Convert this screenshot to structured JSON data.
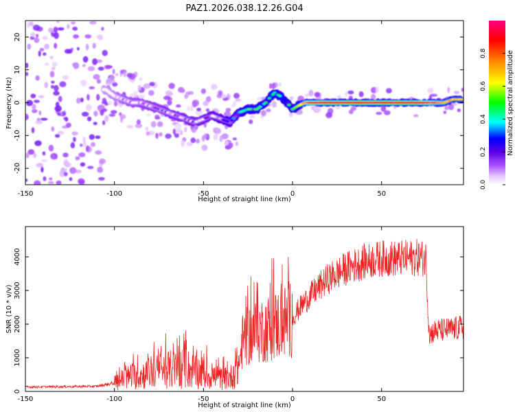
{
  "figure_title": "PAZ1.2026.038.12.26.G04",
  "chart_data": [
    {
      "type": "heatmap",
      "title": "PAZ1.2026.038.12.26.G04",
      "xlabel": "Height of straight line (km)",
      "ylabel": "Frequency (Hz)",
      "xlim": [
        -150,
        96
      ],
      "ylim": [
        -25,
        25
      ],
      "x_ticks": [
        -150,
        -100,
        -50,
        0,
        50
      ],
      "y_ticks": [
        -20,
        -10,
        0,
        10,
        20
      ],
      "colorbar": {
        "label": "Normalized spectral amplitude",
        "range": [
          0,
          1
        ],
        "ticks": [
          0.0,
          0.2,
          0.4,
          0.6,
          0.8
        ]
      },
      "ridge": {
        "description": "Frequency of the dominant spectral ridge vs height",
        "points": [
          [
            -105,
            4
          ],
          [
            -100,
            2
          ],
          [
            -95,
            1
          ],
          [
            -90,
            0
          ],
          [
            -85,
            0
          ],
          [
            -80,
            -1
          ],
          [
            -75,
            -2
          ],
          [
            -70,
            -3
          ],
          [
            -65,
            -4
          ],
          [
            -60,
            -5
          ],
          [
            -55,
            -6
          ],
          [
            -50,
            -5
          ],
          [
            -45,
            -4
          ],
          [
            -40,
            -5
          ],
          [
            -35,
            -6
          ],
          [
            -30,
            -3
          ],
          [
            -25,
            -2
          ],
          [
            -20,
            -2
          ],
          [
            -15,
            0
          ],
          [
            -12,
            2
          ],
          [
            -10,
            3
          ],
          [
            -7,
            2
          ],
          [
            -3,
            0
          ],
          [
            0,
            -2
          ],
          [
            3,
            -1
          ],
          [
            7,
            0
          ],
          [
            10,
            0
          ],
          [
            30,
            0
          ],
          [
            50,
            0
          ],
          [
            70,
            0
          ],
          [
            85,
            0
          ],
          [
            90,
            1
          ],
          [
            95,
            1
          ]
        ],
        "peak_amplitude": [
          [
            -105,
            0.12
          ],
          [
            -90,
            0.18
          ],
          [
            -70,
            0.22
          ],
          [
            -50,
            0.25
          ],
          [
            -35,
            0.32
          ],
          [
            -25,
            0.55
          ],
          [
            -15,
            0.5
          ],
          [
            -10,
            0.65
          ],
          [
            0,
            0.5
          ],
          [
            10,
            0.9
          ],
          [
            30,
            0.95
          ],
          [
            50,
            0.95
          ],
          [
            70,
            0.95
          ],
          [
            90,
            0.7
          ]
        ]
      }
    },
    {
      "type": "line",
      "xlabel": "Height of straight line (km)",
      "ylabel": "SNR (10 * v/v)",
      "xlim": [
        -150,
        96
      ],
      "ylim": [
        0,
        4900
      ],
      "x_ticks": [
        -150,
        -100,
        -50,
        0,
        50
      ],
      "y_ticks": [
        0,
        1000,
        2000,
        3000,
        4000
      ],
      "series": [
        {
          "name": "SNR",
          "color": "#ee2222",
          "x": [
            -150,
            -110,
            -100,
            -95,
            -90,
            -85,
            -80,
            -75,
            -70,
            -65,
            -60,
            -55,
            -50,
            -45,
            -40,
            -35,
            -30,
            -28,
            -25,
            -20,
            -15,
            -10,
            -5,
            0,
            5,
            10,
            20,
            30,
            40,
            50,
            60,
            70,
            75,
            76,
            77,
            80,
            90,
            95
          ],
          "values": [
            130,
            150,
            250,
            380,
            450,
            480,
            550,
            600,
            650,
            650,
            700,
            600,
            550,
            450,
            380,
            400,
            800,
            1500,
            1650,
            1800,
            1850,
            1950,
            2050,
            2200,
            2550,
            2850,
            3350,
            3650,
            3850,
            3950,
            3950,
            3980,
            3950,
            2500,
            1700,
            1800,
            1850,
            1900
          ]
        }
      ]
    }
  ]
}
